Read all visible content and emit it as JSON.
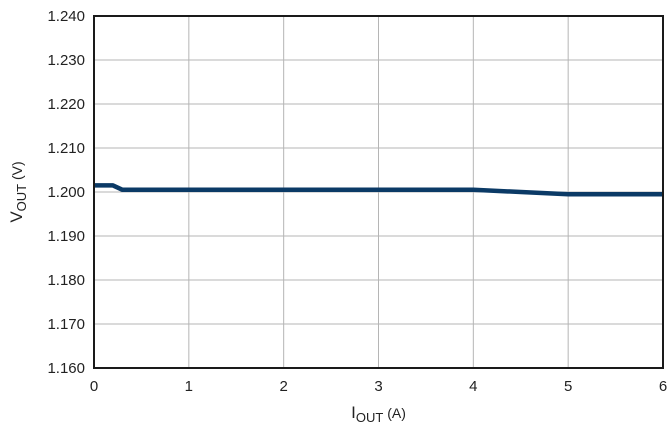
{
  "chart_data": {
    "type": "line",
    "title": "",
    "xlabel": {
      "main": "I",
      "sub": "OUT",
      "unit": " (A)"
    },
    "ylabel": {
      "main": "V",
      "sub": "OUT",
      "unit": " (V)"
    },
    "xlim": [
      0,
      6
    ],
    "ylim": [
      1.16,
      1.24
    ],
    "x_ticks": [
      0,
      1,
      2,
      3,
      4,
      5,
      6
    ],
    "x_tick_labels": [
      "0",
      "1",
      "2",
      "3",
      "4",
      "5",
      "6"
    ],
    "y_ticks": [
      1.16,
      1.17,
      1.18,
      1.19,
      1.2,
      1.21,
      1.22,
      1.23,
      1.24
    ],
    "y_tick_labels": [
      "1.160",
      "1.170",
      "1.180",
      "1.190",
      "1.200",
      "1.210",
      "1.220",
      "1.230",
      "1.240"
    ],
    "grid": true,
    "series": [
      {
        "color": "#0b3a66",
        "x": [
          0,
          0.2,
          0.3,
          1,
          2,
          3,
          4,
          4.5,
          5,
          5.5,
          6
        ],
        "y": [
          1.2015,
          1.2015,
          1.2005,
          1.2005,
          1.2005,
          1.2005,
          1.2005,
          1.2,
          1.1995,
          1.1995,
          1.1995
        ]
      }
    ]
  },
  "colors": {
    "grid": "#b5b5b5",
    "frame": "#1a1a1a",
    "text": "#222222"
  }
}
